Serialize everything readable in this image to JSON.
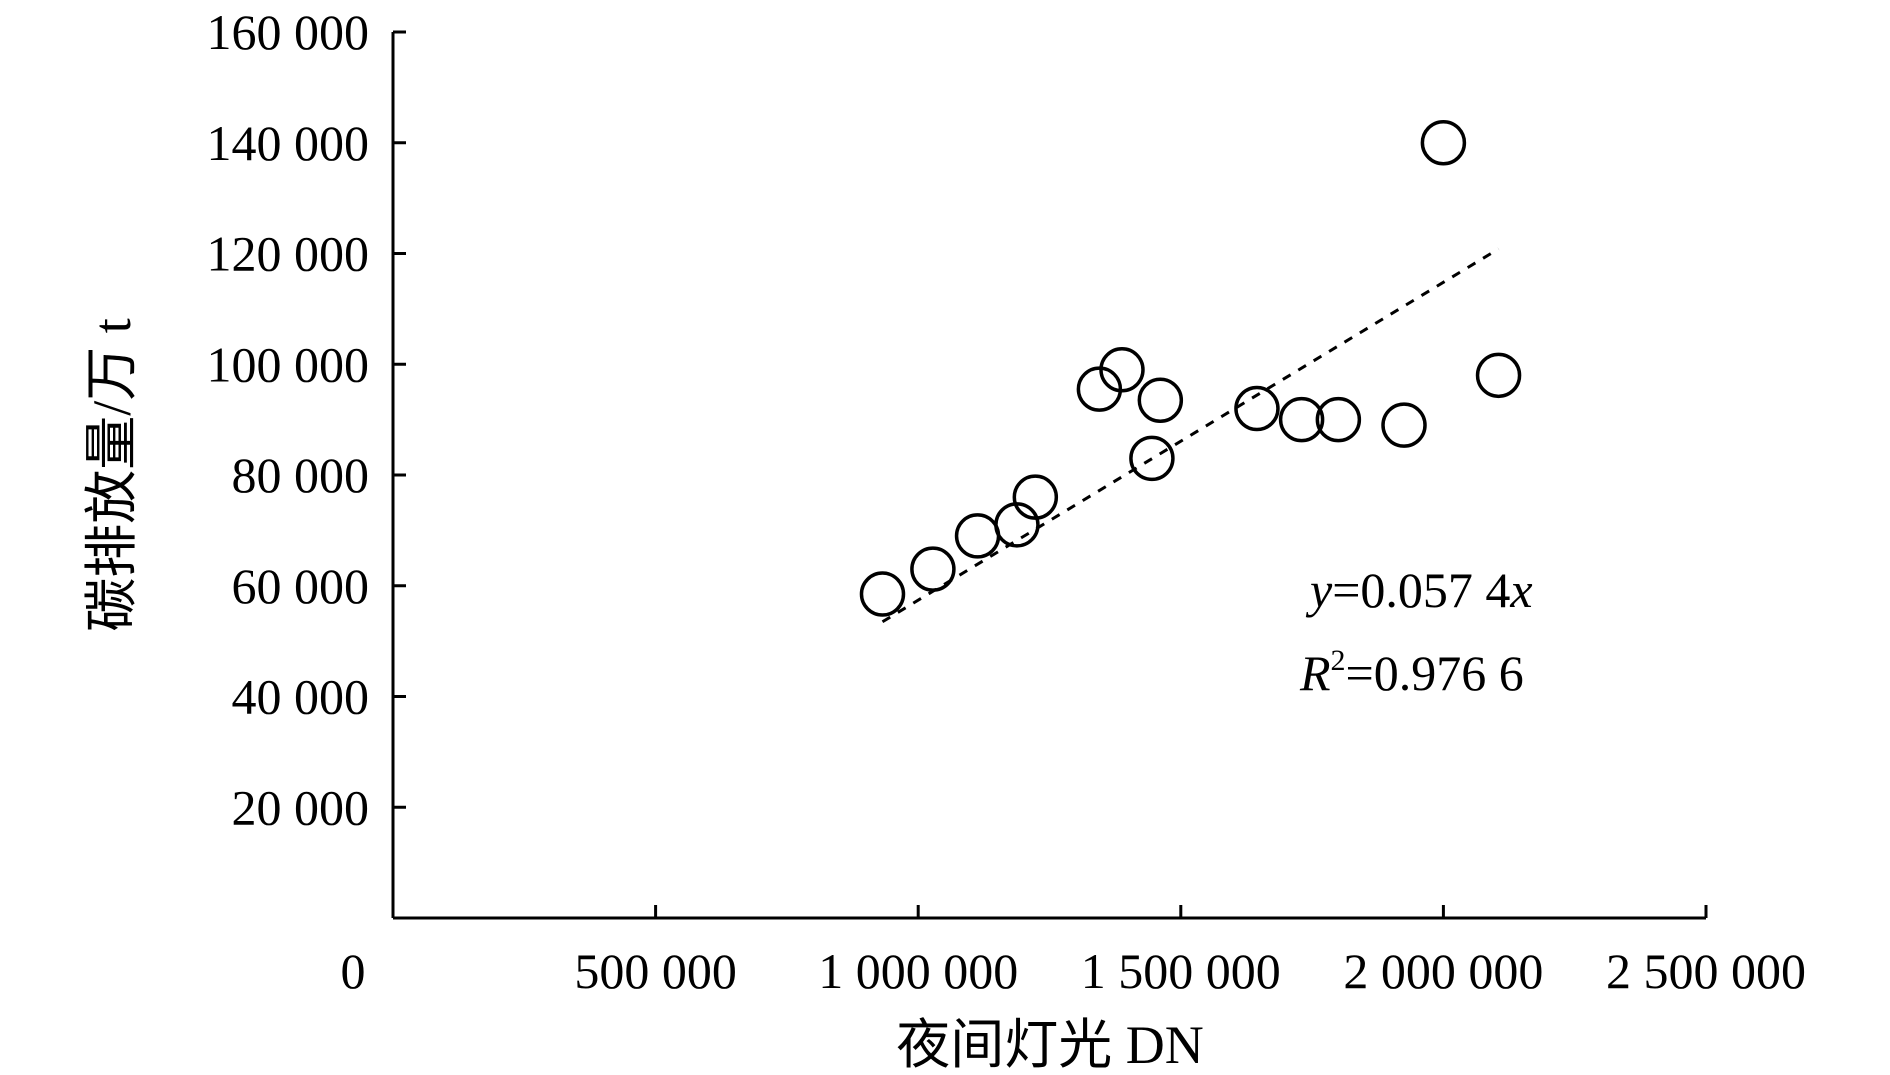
{
  "chart_data": {
    "type": "scatter",
    "title": "",
    "xlabel": "夜间灯光 DN",
    "ylabel": "碳排放量/万 t",
    "xlim": [
      0,
      2500000
    ],
    "ylim": [
      0,
      160000
    ],
    "x_ticks": [
      0,
      500000,
      1000000,
      1500000,
      2000000,
      2500000
    ],
    "x_tick_labels": [
      "0",
      "500 000",
      "1 000 000",
      "1 500 000",
      "2 000 000",
      "2 500 000"
    ],
    "y_ticks": [
      20000,
      40000,
      60000,
      80000,
      100000,
      120000,
      140000,
      160000
    ],
    "y_tick_labels": [
      "20 000",
      "40 000",
      "60 000",
      "80 000",
      "100 000",
      "120 000",
      "140 000",
      "160 000"
    ],
    "grid": false,
    "legend": "none",
    "series": [
      {
        "name": "",
        "marker": "open-circle",
        "points": [
          {
            "x": 932000,
            "y": 58500
          },
          {
            "x": 1028000,
            "y": 63000
          },
          {
            "x": 1113000,
            "y": 69000
          },
          {
            "x": 1188000,
            "y": 71000
          },
          {
            "x": 1223000,
            "y": 76000
          },
          {
            "x": 1345000,
            "y": 95500
          },
          {
            "x": 1388000,
            "y": 99000
          },
          {
            "x": 1445000,
            "y": 83000
          },
          {
            "x": 1461000,
            "y": 93500
          },
          {
            "x": 1645000,
            "y": 92000
          },
          {
            "x": 1730000,
            "y": 90000
          },
          {
            "x": 1800000,
            "y": 90000
          },
          {
            "x": 1925000,
            "y": 89000
          },
          {
            "x": 2000000,
            "y": 140000
          },
          {
            "x": 2105000,
            "y": 98000
          }
        ]
      }
    ],
    "trendline": {
      "style": "dotted",
      "slope": 0.0574,
      "x_range": [
        932000,
        2105000
      ]
    },
    "annotations": {
      "equation_y": "y",
      "equation_eq": "=0.057 4",
      "equation_x": "x",
      "r2_label": "R",
      "r2_exp": "2",
      "r2_value": "=0.976 6"
    }
  }
}
